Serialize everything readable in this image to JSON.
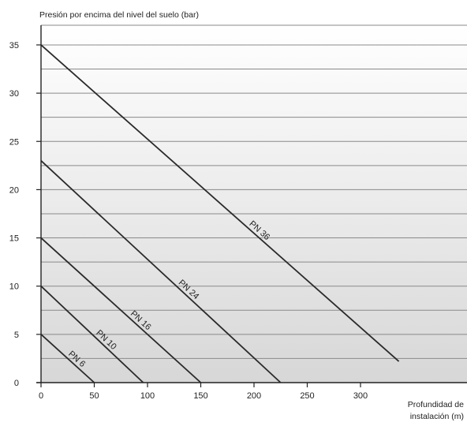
{
  "chart_data": {
    "type": "line",
    "title": "",
    "ylabel": "Presión por encima del nivel del suelo (bar)",
    "xlabel_line1": "Profundidad de",
    "xlabel_line2": "instalación (m)",
    "xlim": [
      0,
      400
    ],
    "ylim": [
      0,
      36
    ],
    "x_ticks": [
      0,
      50,
      100,
      150,
      200,
      250,
      300
    ],
    "y_ticks": [
      0,
      5,
      10,
      15,
      20,
      25,
      30,
      35
    ],
    "grid": true,
    "grid_step_y": 2.5,
    "background_gradient": [
      "#ffffff",
      "#d7d7d7"
    ],
    "line_color": "#2a2a2a",
    "series": [
      {
        "name": "PN 36",
        "x": [
          0,
          336
        ],
        "y": [
          35,
          2.2
        ]
      },
      {
        "name": "PN 24",
        "x": [
          0,
          225
        ],
        "y": [
          23,
          0
        ]
      },
      {
        "name": "PN 16",
        "x": [
          0,
          150
        ],
        "y": [
          15,
          0
        ]
      },
      {
        "name": "PN 10",
        "x": [
          0,
          96
        ],
        "y": [
          10,
          0
        ]
      },
      {
        "name": "PN 6",
        "x": [
          0,
          50
        ],
        "y": [
          5,
          0
        ]
      }
    ]
  }
}
